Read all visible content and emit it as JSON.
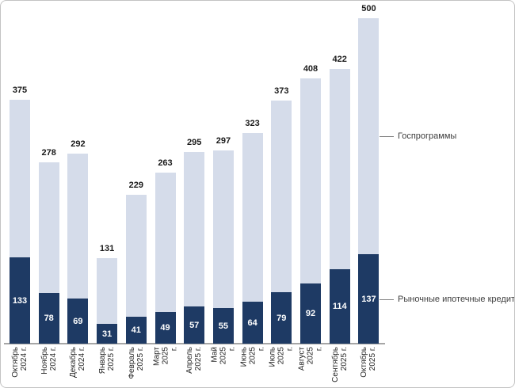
{
  "chart_data": {
    "type": "bar",
    "stacked": true,
    "title": "",
    "xlabel": "",
    "ylabel": "",
    "ylim": [
      0,
      500
    ],
    "grid": false,
    "legend_position": "right-callouts",
    "categories": [
      "Октябрь 2024 г.",
      "Ноябрь 2024 г.",
      "Декабрь 2024 г.",
      "Январь 2025 г.",
      "Февраль 2025 г.",
      "Март 2025 г.",
      "Апрель 2025 г.",
      "Май 2025 г.",
      "Июнь 2025 г.",
      "Июль 2025 г.",
      "Август 2025 г.",
      "Сентябрь 2025 г.",
      "Октябрь 2025 г."
    ],
    "category_label_lines": [
      [
        "Октябрь",
        "2024 г."
      ],
      [
        "Ноябрь",
        "2024 г."
      ],
      [
        "Декабрь",
        "2024 г."
      ],
      [
        "Январь",
        "2025 г."
      ],
      [
        "Февраль",
        "2025 г."
      ],
      [
        "Март",
        "2025",
        "г."
      ],
      [
        "Апрель",
        "2025 г."
      ],
      [
        "Май",
        "2025",
        "г."
      ],
      [
        "Июнь",
        "2025",
        "г."
      ],
      [
        "Июль",
        "2025",
        "г."
      ],
      [
        "Август",
        "2025",
        "г."
      ],
      [
        "Сентябрь",
        "2025 г."
      ],
      [
        "Октябрь",
        "2025 г."
      ]
    ],
    "series": [
      {
        "name": "Рыночные ипотечные кредиты",
        "color": "#1e3a64",
        "values": [
          133,
          78,
          69,
          31,
          41,
          49,
          57,
          55,
          64,
          79,
          92,
          114,
          137
        ]
      },
      {
        "name": "Госпрограммы",
        "color": "#d5dcea",
        "values": [
          242,
          200,
          223,
          100,
          188,
          214,
          238,
          242,
          259,
          294,
          316,
          308,
          363
        ]
      }
    ],
    "totals": [
      375,
      278,
      292,
      131,
      229,
      263,
      295,
      297,
      323,
      373,
      408,
      422,
      500
    ]
  },
  "colors": {
    "market_bar": "#1e3a64",
    "gos_bar": "#d5dcea",
    "axis": "#a6a6a6",
    "callout": "#7f7f7f",
    "total_label": "#1a1a1a",
    "legend_text": "#3d3d3d",
    "frame_border": "#c3c3c3"
  }
}
